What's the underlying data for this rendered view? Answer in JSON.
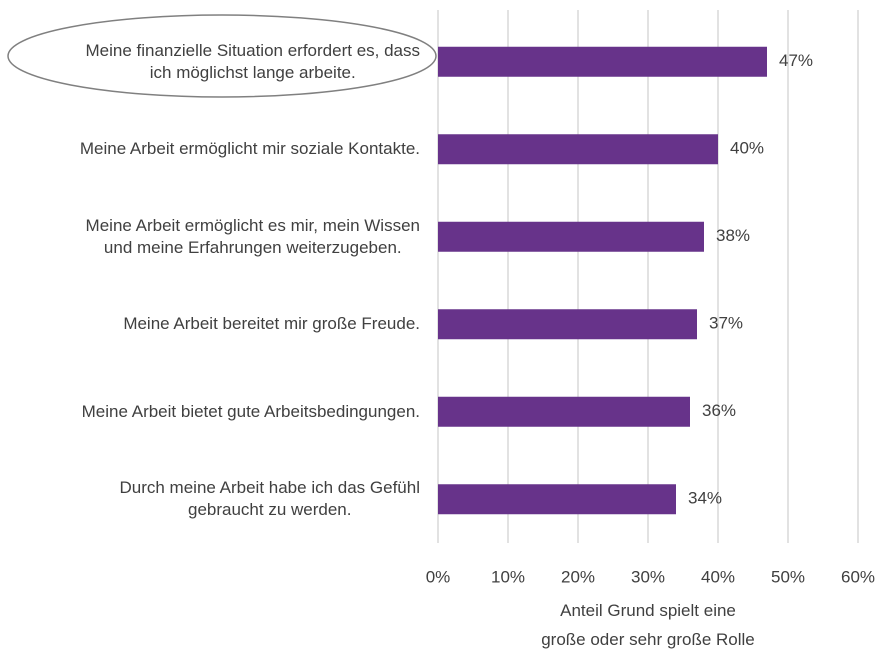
{
  "chart_data": {
    "type": "bar",
    "orientation": "horizontal",
    "categories": [
      "Meine finanzielle Situation erfordert es, dass\nich möglichst lange arbeite.",
      "Meine Arbeit ermöglicht mir soziale Kontakte.",
      "Meine Arbeit ermöglicht es mir, mein Wissen\nund meine Erfahrungen weiterzugeben.",
      "Meine Arbeit bereitet mir große Freude.",
      "Meine Arbeit bietet gute Arbeitsbedingungen.",
      "Durch meine Arbeit habe ich das Gefühl\ngebraucht zu werden."
    ],
    "values": [
      47,
      40,
      38,
      37,
      36,
      34
    ],
    "value_labels": [
      "47%",
      "40%",
      "38%",
      "37%",
      "36%",
      "34%"
    ],
    "color": "#67338a",
    "xlabel": "Anteil Grund spielt eine\ngroße oder sehr große Rolle",
    "xlim": [
      0,
      60
    ],
    "xticks": [
      {
        "value": 0,
        "label": "0%"
      },
      {
        "value": 10,
        "label": "10%"
      },
      {
        "value": 20,
        "label": "20%"
      },
      {
        "value": 30,
        "label": "30%"
      },
      {
        "value": 40,
        "label": "40%"
      },
      {
        "value": 50,
        "label": "50%"
      },
      {
        "value": 60,
        "label": "60%"
      }
    ],
    "grid": true
  }
}
